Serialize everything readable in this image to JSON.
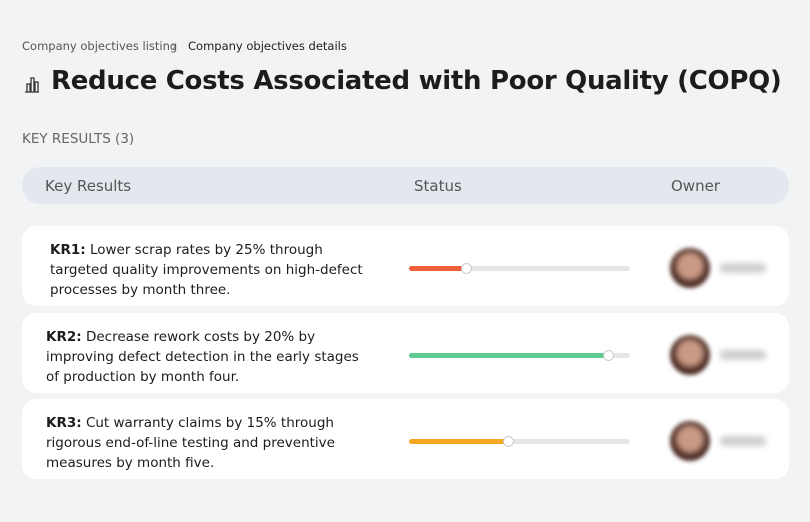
{
  "breadcrumb": [
    "Company objectives listing",
    "Company objectives details"
  ],
  "title": "Reduce Costs Associated with Poor Quality (COPQ)",
  "section_label": "KEY RESULTS (3)",
  "table": {
    "headers": [
      "Key Results",
      "Status",
      "Owner"
    ],
    "rows": [
      {
        "kr": "KR1:",
        "text": "Lower scrap rates by 25% through targeted quality improvements on high-defect processes by month three.",
        "progress": 26,
        "color": "#f0603a"
      },
      {
        "kr": "KR2:",
        "text": "Decrease rework costs by 20% by improving defect detection in the early stages of production by month four.",
        "progress": 90,
        "color": "#5ccb8f"
      },
      {
        "kr": "KR3:",
        "text": "Cut warranty claims by 15% through rigorous end-of-line testing and preventive measures by month five.",
        "progress": 45,
        "color": "#f5a623"
      }
    ]
  }
}
